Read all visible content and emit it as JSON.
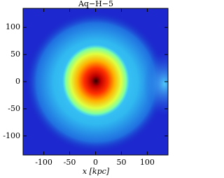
{
  "chart_data": {
    "type": "density-map",
    "title": "Aq−H−5",
    "x_label": "x [kpc]",
    "xlim": [
      -140,
      140
    ],
    "ylim": [
      -135,
      135
    ],
    "xticks": [
      -100,
      -50,
      0,
      50,
      100
    ],
    "yticks": [
      -100,
      -50,
      0,
      50,
      100
    ]
  }
}
